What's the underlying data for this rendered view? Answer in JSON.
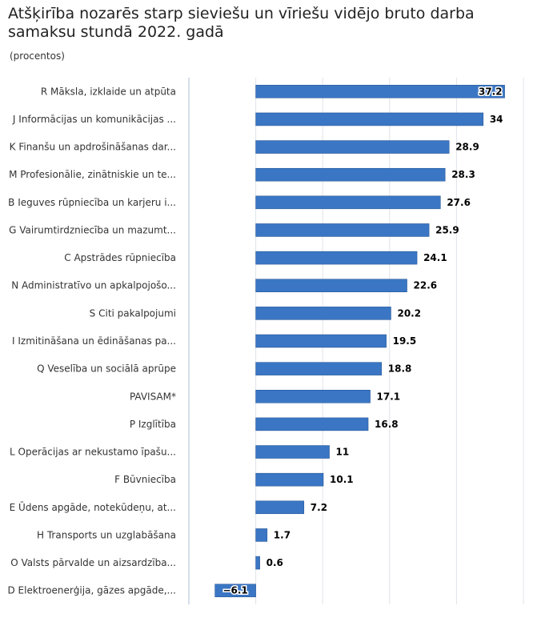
{
  "title": "Atšķirība nozarēs starp sieviešu un vīriešu vidējo bruto darba samaksu stundā 2022. gadā",
  "subtitle": "(procentos)",
  "colors": {
    "bar": "#3a76c4",
    "bar_stroke": "#1f4e8c",
    "grid": "#dfe3e8",
    "axis": "#c7d3e2"
  },
  "chart_data": {
    "type": "bar",
    "orientation": "horizontal",
    "categories": [
      "R Māksla, izklaide un atpūta",
      "J Informācijas un komunikācijas ...",
      "K Finanšu un apdrošināšanas dar...",
      "M Profesionālie, zinātniskie un te...",
      "B Ieguves rūpniecība un karjeru i...",
      "G Vairumtirdzniecība un mazumt...",
      "C Apstrādes rūpniecība",
      "N Administratīvo un apkalpojošo...",
      "S Citi pakalpojumi",
      "I Izmitināšana un ēdināšanas pa...",
      "Q Veselība un sociālā aprūpe",
      "PAVISAM*",
      "P Izglītība",
      "L Operācijas ar nekustamo īpašu...",
      "F Būvniecība",
      "E Ūdens apgāde, notekūdeņu, at...",
      "H Transports un uzglabāšana",
      "O Valsts pārvalde un aizsardzība...",
      "D Elektroenerģija, gāzes apgāde,..."
    ],
    "values": [
      37.2,
      34,
      28.9,
      28.3,
      27.6,
      25.9,
      24.1,
      22.6,
      20.2,
      19.5,
      18.8,
      17.1,
      16.8,
      11,
      10.1,
      7.2,
      1.7,
      0.6,
      -6.1
    ],
    "value_labels": [
      "37.2",
      "34",
      "28.9",
      "28.3",
      "27.6",
      "25.9",
      "24.1",
      "22.6",
      "20.2",
      "19.5",
      "18.8",
      "17.1",
      "16.8",
      "11",
      "10.1",
      "7.2",
      "1.7",
      "0.6",
      "−6.1"
    ],
    "xlim": [
      -10,
      40
    ],
    "grid": true,
    "legend": "none"
  }
}
